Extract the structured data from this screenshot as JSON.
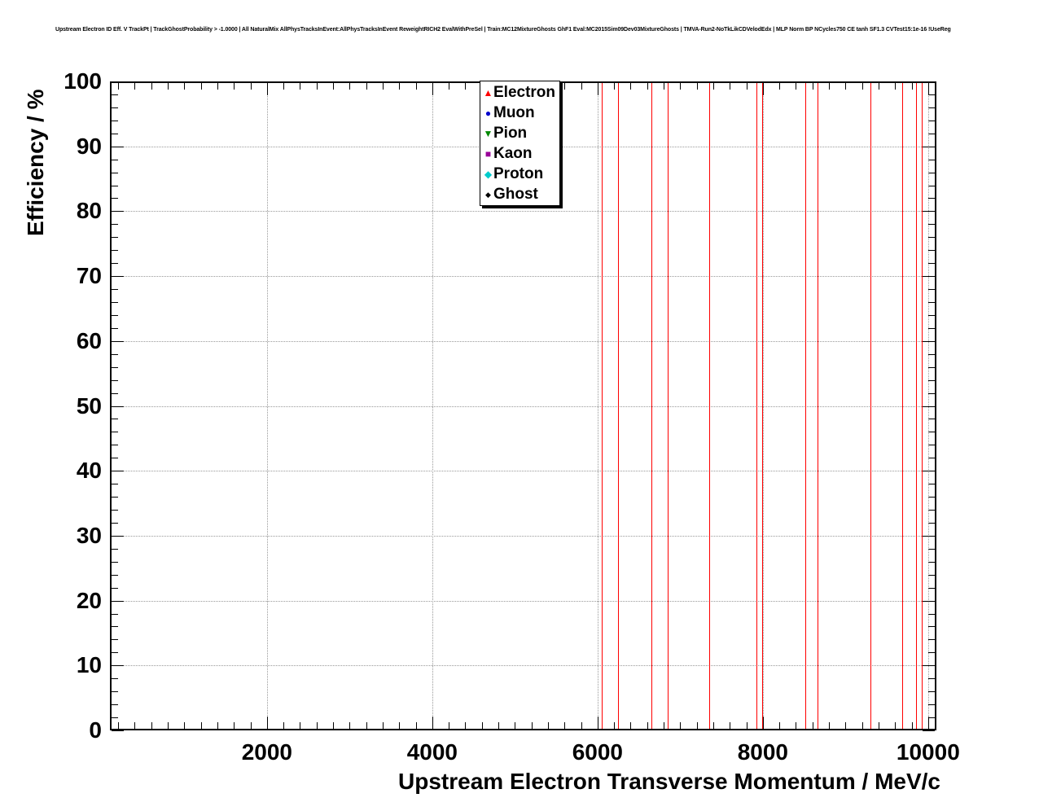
{
  "page": {
    "title": "Upstream Electron ID Eff. V TrackPt | TrackGhostProbability > -1.0000 | All NaturalMix AllPhysTracksInEvent:AllPhysTracksInEvent ReweightRICH2 EvalWithPreSel | Train:MC12MixtureGhosts GhF1 Eval:MC2015Sim09Dev03MixtureGhosts | TMVA-Run2-NoTkLikCDVelodEdx | MLP Norm BP NCycles750 CE tanh SF1.3 CVTest15:1e-16 !UseReg"
  },
  "chart_data": {
    "type": "scatter",
    "title": "Upstream Electron ID Eff. V TrackPt | TrackGhostProbability > -1.0000 | All NaturalMix AllPhysTracksInEvent:AllPhysTracksInEvent ReweightRICH2 EvalWithPreSel | Train:MC12MixtureGhosts GhF1 Eval:MC2015Sim09Dev03MixtureGhosts | TMVA-Run2-NoTkLikCDVelodEdx | MLP Norm BP NCycles750 CE tanh SF1.3 CVTest15:1e-16 !UseReg",
    "xlabel": "Upstream Electron Transverse Momentum / MeV/c",
    "ylabel": "Efficiency / %",
    "xlim": [
      100,
      10100
    ],
    "ylim": [
      0,
      100
    ],
    "x_major_ticks": [
      2000,
      4000,
      6000,
      8000,
      10000
    ],
    "x_minor_step": 200,
    "y_major_ticks": [
      0,
      10,
      20,
      30,
      40,
      50,
      60,
      70,
      80,
      90,
      100
    ],
    "y_minor_step": 2,
    "grid": {
      "style": "dotted",
      "color": "#999999",
      "on": true
    },
    "frame_color": "#000000",
    "legend": {
      "position": "top-center",
      "entries": [
        {
          "label": "Electron",
          "marker": "triangle-up",
          "color": "#ff0000"
        },
        {
          "label": "Muon",
          "marker": "circle",
          "color": "#0000cc"
        },
        {
          "label": "Pion",
          "marker": "triangle-down",
          "color": "#008800"
        },
        {
          "label": "Kaon",
          "marker": "square",
          "color": "#990099"
        },
        {
          "label": "Proton",
          "marker": "diamond",
          "color": "#00cccc"
        },
        {
          "label": "Ghost",
          "marker": "diamond-small",
          "color": "#000000"
        }
      ]
    },
    "series": [
      {
        "name": "Electron",
        "color": "#ff0000",
        "marker": "triangle-up",
        "note": "Visible only as vertical error bars spanning the full efficiency range 0-100%",
        "error_bar_x": [
          6050,
          6250,
          6650,
          6850,
          7350,
          7920,
          7990,
          8510,
          8660,
          9300,
          9690,
          9850,
          9920
        ],
        "error_bar_y_range": [
          0,
          100
        ]
      },
      {
        "name": "Muon",
        "color": "#0000cc",
        "marker": "circle",
        "points": []
      },
      {
        "name": "Pion",
        "color": "#008800",
        "marker": "triangle-down",
        "points": []
      },
      {
        "name": "Kaon",
        "color": "#990099",
        "marker": "square",
        "points": []
      },
      {
        "name": "Proton",
        "color": "#00cccc",
        "marker": "diamond",
        "points": []
      },
      {
        "name": "Ghost",
        "color": "#000000",
        "marker": "diamond-small",
        "points": []
      }
    ]
  }
}
